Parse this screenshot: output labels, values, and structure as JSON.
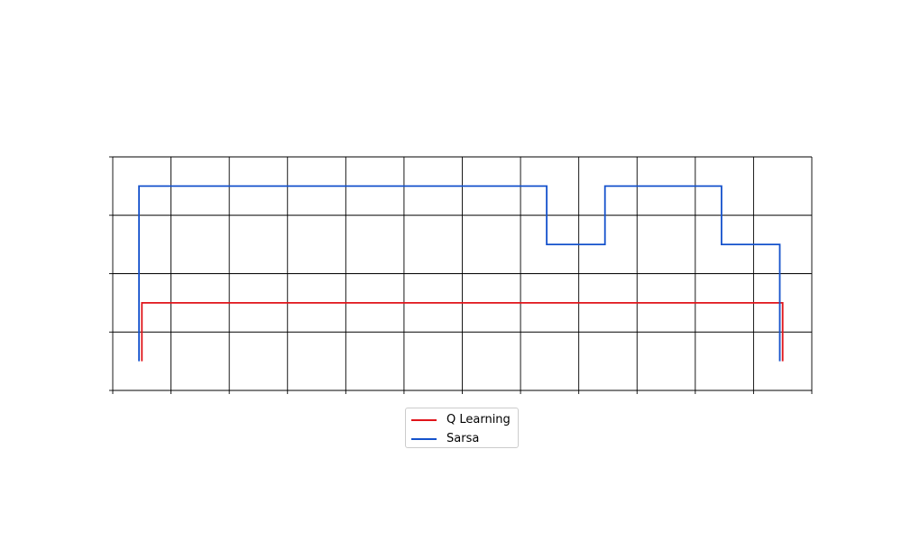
{
  "chart_data": {
    "type": "line",
    "title": "",
    "xlabel": "",
    "ylabel": "",
    "grid": true,
    "xlim": [
      0,
      12
    ],
    "ylim": [
      0,
      4
    ],
    "xticks": [
      0,
      1,
      2,
      3,
      4,
      5,
      6,
      7,
      8,
      9,
      10,
      11,
      12
    ],
    "yticks": [
      0,
      1,
      2,
      3,
      4
    ],
    "tick_labels_visible": false,
    "legend_position": "below-center",
    "series": [
      {
        "name": "Q Learning",
        "color": "#e0141a",
        "x": [
          0.5,
          0.5,
          11.5,
          11.5
        ],
        "y": [
          0.5,
          1.5,
          1.5,
          0.5
        ]
      },
      {
        "name": "Sarsa",
        "color": "#1552cc",
        "x": [
          0.45,
          0.45,
          7.45,
          7.45,
          8.45,
          8.45,
          10.45,
          10.45,
          11.45,
          11.45
        ],
        "y": [
          0.5,
          3.5,
          3.5,
          2.5,
          2.5,
          3.5,
          3.5,
          2.5,
          2.5,
          0.5
        ]
      }
    ]
  }
}
